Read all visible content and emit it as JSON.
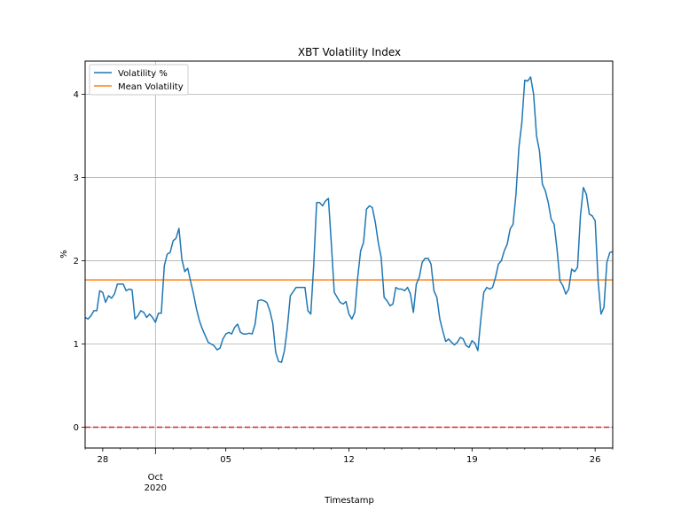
{
  "chart_data": {
    "type": "line",
    "title": "XBT Volatility Index",
    "xlabel": "Timestamp",
    "ylabel": "%",
    "x_start": "2020-09-27",
    "x_end": "2020-10-27",
    "ylim": [
      -0.25,
      4.4
    ],
    "yticks": [
      0,
      1,
      2,
      3,
      4
    ],
    "xticks": [
      {
        "date": "2020-09-28",
        "label": "28",
        "sublabel": ""
      },
      {
        "date": "2020-10-01",
        "label": "Oct",
        "sublabel": "2020"
      },
      {
        "date": "2020-10-05",
        "label": "05",
        "sublabel": ""
      },
      {
        "date": "2020-10-12",
        "label": "12",
        "sublabel": ""
      },
      {
        "date": "2020-10-19",
        "label": "19",
        "sublabel": ""
      },
      {
        "date": "2020-10-26",
        "label": "26",
        "sublabel": ""
      }
    ],
    "grid": true,
    "legend": "upper left",
    "series": [
      {
        "name": "Volatility %",
        "color": "#1f77b4",
        "points": [
          [
            "2020-09-27T00:00",
            1.32
          ],
          [
            "2020-09-27T04:00",
            1.3
          ],
          [
            "2020-09-27T08:00",
            1.34
          ],
          [
            "2020-09-27T12:00",
            1.4
          ],
          [
            "2020-09-27T16:00",
            1.4
          ],
          [
            "2020-09-27T20:00",
            1.64
          ],
          [
            "2020-09-28T00:00",
            1.62
          ],
          [
            "2020-09-28T04:00",
            1.5
          ],
          [
            "2020-09-28T08:00",
            1.58
          ],
          [
            "2020-09-28T12:00",
            1.55
          ],
          [
            "2020-09-28T16:00",
            1.6
          ],
          [
            "2020-09-28T20:00",
            1.72
          ],
          [
            "2020-09-29T00:00",
            1.72
          ],
          [
            "2020-09-29T04:00",
            1.72
          ],
          [
            "2020-09-29T08:00",
            1.64
          ],
          [
            "2020-09-29T12:00",
            1.66
          ],
          [
            "2020-09-29T16:00",
            1.65
          ],
          [
            "2020-09-29T20:00",
            1.3
          ],
          [
            "2020-09-30T00:00",
            1.34
          ],
          [
            "2020-09-30T04:00",
            1.4
          ],
          [
            "2020-09-30T08:00",
            1.38
          ],
          [
            "2020-09-30T12:00",
            1.32
          ],
          [
            "2020-09-30T16:00",
            1.36
          ],
          [
            "2020-09-30T20:00",
            1.32
          ],
          [
            "2020-10-01T00:00",
            1.26
          ],
          [
            "2020-10-01T04:00",
            1.37
          ],
          [
            "2020-10-01T08:00",
            1.37
          ],
          [
            "2020-10-01T12:00",
            1.94
          ],
          [
            "2020-10-01T16:00",
            2.08
          ],
          [
            "2020-10-01T20:00",
            2.1
          ],
          [
            "2020-10-02T00:00",
            2.24
          ],
          [
            "2020-10-02T04:00",
            2.27
          ],
          [
            "2020-10-02T08:00",
            2.39
          ],
          [
            "2020-10-02T12:00",
            2.02
          ],
          [
            "2020-10-02T16:00",
            1.87
          ],
          [
            "2020-10-02T20:00",
            1.91
          ],
          [
            "2020-10-03T00:00",
            1.75
          ],
          [
            "2020-10-03T04:00",
            1.6
          ],
          [
            "2020-10-03T08:00",
            1.42
          ],
          [
            "2020-10-03T12:00",
            1.28
          ],
          [
            "2020-10-03T16:00",
            1.18
          ],
          [
            "2020-10-03T20:00",
            1.1
          ],
          [
            "2020-10-04T00:00",
            1.02
          ],
          [
            "2020-10-04T04:00",
            1.0
          ],
          [
            "2020-10-04T08:00",
            0.98
          ],
          [
            "2020-10-04T12:00",
            0.93
          ],
          [
            "2020-10-04T16:00",
            0.95
          ],
          [
            "2020-10-04T20:00",
            1.06
          ],
          [
            "2020-10-05T00:00",
            1.12
          ],
          [
            "2020-10-05T04:00",
            1.14
          ],
          [
            "2020-10-05T08:00",
            1.12
          ],
          [
            "2020-10-05T12:00",
            1.2
          ],
          [
            "2020-10-05T16:00",
            1.24
          ],
          [
            "2020-10-05T20:00",
            1.14
          ],
          [
            "2020-10-06T00:00",
            1.12
          ],
          [
            "2020-10-06T04:00",
            1.12
          ],
          [
            "2020-10-06T08:00",
            1.13
          ],
          [
            "2020-10-06T12:00",
            1.12
          ],
          [
            "2020-10-06T16:00",
            1.24
          ],
          [
            "2020-10-06T20:00",
            1.52
          ],
          [
            "2020-10-07T00:00",
            1.53
          ],
          [
            "2020-10-07T04:00",
            1.52
          ],
          [
            "2020-10-07T08:00",
            1.5
          ],
          [
            "2020-10-07T12:00",
            1.4
          ],
          [
            "2020-10-07T16:00",
            1.25
          ],
          [
            "2020-10-07T20:00",
            0.9
          ],
          [
            "2020-10-08T00:00",
            0.79
          ],
          [
            "2020-10-08T04:00",
            0.78
          ],
          [
            "2020-10-08T08:00",
            0.92
          ],
          [
            "2020-10-08T12:00",
            1.2
          ],
          [
            "2020-10-08T16:00",
            1.58
          ],
          [
            "2020-10-08T20:00",
            1.63
          ],
          [
            "2020-10-09T00:00",
            1.68
          ],
          [
            "2020-10-09T04:00",
            1.68
          ],
          [
            "2020-10-09T08:00",
            1.68
          ],
          [
            "2020-10-09T12:00",
            1.68
          ],
          [
            "2020-10-09T16:00",
            1.4
          ],
          [
            "2020-10-09T20:00",
            1.36
          ],
          [
            "2020-10-10T00:00",
            1.95
          ],
          [
            "2020-10-10T04:00",
            2.7
          ],
          [
            "2020-10-10T08:00",
            2.7
          ],
          [
            "2020-10-10T12:00",
            2.66
          ],
          [
            "2020-10-10T16:00",
            2.72
          ],
          [
            "2020-10-10T20:00",
            2.75
          ],
          [
            "2020-10-11T00:00",
            2.2
          ],
          [
            "2020-10-11T04:00",
            1.62
          ],
          [
            "2020-10-11T08:00",
            1.56
          ],
          [
            "2020-10-11T12:00",
            1.5
          ],
          [
            "2020-10-11T16:00",
            1.48
          ],
          [
            "2020-10-11T20:00",
            1.51
          ],
          [
            "2020-10-12T00:00",
            1.36
          ],
          [
            "2020-10-12T04:00",
            1.3
          ],
          [
            "2020-10-12T08:00",
            1.38
          ],
          [
            "2020-10-12T12:00",
            1.8
          ],
          [
            "2020-10-12T16:00",
            2.12
          ],
          [
            "2020-10-12T20:00",
            2.22
          ],
          [
            "2020-10-13T00:00",
            2.62
          ],
          [
            "2020-10-13T04:00",
            2.66
          ],
          [
            "2020-10-13T08:00",
            2.64
          ],
          [
            "2020-10-13T12:00",
            2.46
          ],
          [
            "2020-10-13T16:00",
            2.22
          ],
          [
            "2020-10-13T20:00",
            2.04
          ],
          [
            "2020-10-14T00:00",
            1.56
          ],
          [
            "2020-10-14T04:00",
            1.52
          ],
          [
            "2020-10-14T08:00",
            1.46
          ],
          [
            "2020-10-14T12:00",
            1.48
          ],
          [
            "2020-10-14T16:00",
            1.68
          ],
          [
            "2020-10-14T20:00",
            1.66
          ],
          [
            "2020-10-15T00:00",
            1.66
          ],
          [
            "2020-10-15T04:00",
            1.64
          ],
          [
            "2020-10-15T08:00",
            1.68
          ],
          [
            "2020-10-15T12:00",
            1.6
          ],
          [
            "2020-10-15T16:00",
            1.38
          ],
          [
            "2020-10-15T20:00",
            1.72
          ],
          [
            "2020-10-16T00:00",
            1.8
          ],
          [
            "2020-10-16T04:00",
            1.98
          ],
          [
            "2020-10-16T08:00",
            2.03
          ],
          [
            "2020-10-16T12:00",
            2.03
          ],
          [
            "2020-10-16T16:00",
            1.96
          ],
          [
            "2020-10-16T20:00",
            1.64
          ],
          [
            "2020-10-17T00:00",
            1.56
          ],
          [
            "2020-10-17T04:00",
            1.3
          ],
          [
            "2020-10-17T08:00",
            1.16
          ],
          [
            "2020-10-17T12:00",
            1.03
          ],
          [
            "2020-10-17T16:00",
            1.06
          ],
          [
            "2020-10-17T20:00",
            1.02
          ],
          [
            "2020-10-18T00:00",
            0.99
          ],
          [
            "2020-10-18T04:00",
            1.02
          ],
          [
            "2020-10-18T08:00",
            1.08
          ],
          [
            "2020-10-18T12:00",
            1.06
          ],
          [
            "2020-10-18T16:00",
            0.98
          ],
          [
            "2020-10-18T20:00",
            0.96
          ],
          [
            "2020-10-19T00:00",
            1.04
          ],
          [
            "2020-10-19T04:00",
            1.01
          ],
          [
            "2020-10-19T08:00",
            0.92
          ],
          [
            "2020-10-19T12:00",
            1.3
          ],
          [
            "2020-10-19T16:00",
            1.62
          ],
          [
            "2020-10-19T20:00",
            1.68
          ],
          [
            "2020-10-20T00:00",
            1.66
          ],
          [
            "2020-10-20T04:00",
            1.68
          ],
          [
            "2020-10-20T08:00",
            1.8
          ],
          [
            "2020-10-20T12:00",
            1.96
          ],
          [
            "2020-10-20T16:00",
            2.0
          ],
          [
            "2020-10-20T20:00",
            2.12
          ],
          [
            "2020-10-21T00:00",
            2.2
          ],
          [
            "2020-10-21T04:00",
            2.38
          ],
          [
            "2020-10-21T08:00",
            2.44
          ],
          [
            "2020-10-21T12:00",
            2.8
          ],
          [
            "2020-10-21T16:00",
            3.36
          ],
          [
            "2020-10-21T20:00",
            3.66
          ],
          [
            "2020-10-22T00:00",
            4.17
          ],
          [
            "2020-10-22T04:00",
            4.16
          ],
          [
            "2020-10-22T08:00",
            4.21
          ],
          [
            "2020-10-22T12:00",
            4.0
          ],
          [
            "2020-10-22T16:00",
            3.5
          ],
          [
            "2020-10-22T20:00",
            3.32
          ],
          [
            "2020-10-23T00:00",
            2.92
          ],
          [
            "2020-10-23T04:00",
            2.84
          ],
          [
            "2020-10-23T08:00",
            2.7
          ],
          [
            "2020-10-23T12:00",
            2.5
          ],
          [
            "2020-10-23T16:00",
            2.44
          ],
          [
            "2020-10-23T20:00",
            2.14
          ],
          [
            "2020-10-24T00:00",
            1.76
          ],
          [
            "2020-10-24T04:00",
            1.7
          ],
          [
            "2020-10-24T08:00",
            1.6
          ],
          [
            "2020-10-24T12:00",
            1.66
          ],
          [
            "2020-10-24T16:00",
            1.9
          ],
          [
            "2020-10-24T20:00",
            1.87
          ],
          [
            "2020-10-25T00:00",
            1.92
          ],
          [
            "2020-10-25T04:00",
            2.54
          ],
          [
            "2020-10-25T08:00",
            2.88
          ],
          [
            "2020-10-25T12:00",
            2.8
          ],
          [
            "2020-10-25T16:00",
            2.56
          ],
          [
            "2020-10-25T20:00",
            2.54
          ],
          [
            "2020-10-26T00:00",
            2.48
          ],
          [
            "2020-10-26T04:00",
            1.76
          ],
          [
            "2020-10-26T08:00",
            1.36
          ],
          [
            "2020-10-26T12:00",
            1.44
          ],
          [
            "2020-10-26T16:00",
            1.98
          ],
          [
            "2020-10-26T20:00",
            2.1
          ],
          [
            "2020-10-27T00:00",
            2.11
          ]
        ]
      },
      {
        "name": "Mean Volatility",
        "color": "#ff7f0e",
        "constant": 1.77
      }
    ],
    "reference_line": {
      "y": 0,
      "color": "#d62728",
      "style": "dashed"
    }
  }
}
